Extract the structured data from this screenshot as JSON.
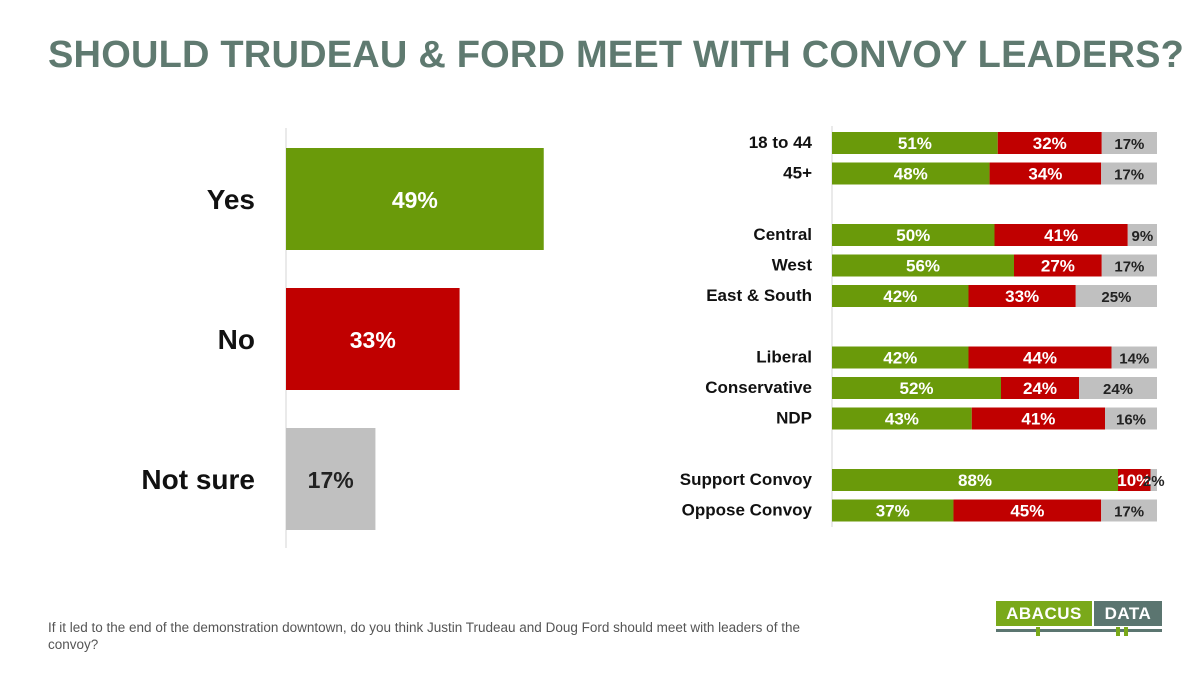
{
  "title": "SHOULD TRUDEAU & FORD MEET WITH CONVOY LEADERS?",
  "footnote": "If it led to the end of the demonstration downtown, do you think Justin Trudeau and Doug Ford should meet with leaders of the convoy?",
  "logo": {
    "left": "ABACUS",
    "right": "DATA"
  },
  "colors": {
    "yes": "#6a9a0a",
    "no": "#c00000",
    "not_sure": "#c0c0c0",
    "title": "#5f7a70"
  },
  "chart_data": [
    {
      "type": "bar",
      "orientation": "horizontal",
      "categories": [
        "Yes",
        "No",
        "Not sure"
      ],
      "values": [
        49,
        33,
        17
      ],
      "labels": [
        "49%",
        "33%",
        "17%"
      ],
      "colors": [
        "#6a9a0a",
        "#c00000",
        "#c0c0c0"
      ],
      "xlim": [
        0,
        100
      ]
    },
    {
      "type": "bar",
      "orientation": "horizontal",
      "stacked": true,
      "groups": [
        [
          "18 to 44",
          "45+"
        ],
        [
          "Central",
          "West",
          "East & South"
        ],
        [
          "Liberal",
          "Conservative",
          "NDP"
        ],
        [
          "Support Convoy",
          "Oppose Convoy"
        ]
      ],
      "categories": [
        "18 to 44",
        "45+",
        "Central",
        "West",
        "East & South",
        "Liberal",
        "Conservative",
        "NDP",
        "Support Convoy",
        "Oppose Convoy"
      ],
      "series": [
        {
          "values": [
            51,
            48,
            50,
            56,
            42,
            42,
            52,
            43,
            88,
            37
          ],
          "color": "#6a9a0a"
        },
        {
          "values": [
            32,
            34,
            41,
            27,
            33,
            44,
            24,
            41,
            10,
            45
          ],
          "color": "#c00000"
        },
        {
          "values": [
            17,
            17,
            9,
            17,
            25,
            14,
            24,
            16,
            2,
            17
          ],
          "color": "#c0c0c0"
        }
      ],
      "labels": [
        [
          "51%",
          "32%",
          "17%"
        ],
        [
          "48%",
          "34%",
          "17%"
        ],
        [
          "50%",
          "41%",
          "9%"
        ],
        [
          "56%",
          "27%",
          "17%"
        ],
        [
          "42%",
          "33%",
          "25%"
        ],
        [
          "42%",
          "44%",
          "14%"
        ],
        [
          "52%",
          "24%",
          "24%"
        ],
        [
          "43%",
          "41%",
          "16%"
        ],
        [
          "88%",
          "10%",
          "2%"
        ],
        [
          "37%",
          "45%",
          "17%"
        ]
      ]
    }
  ]
}
